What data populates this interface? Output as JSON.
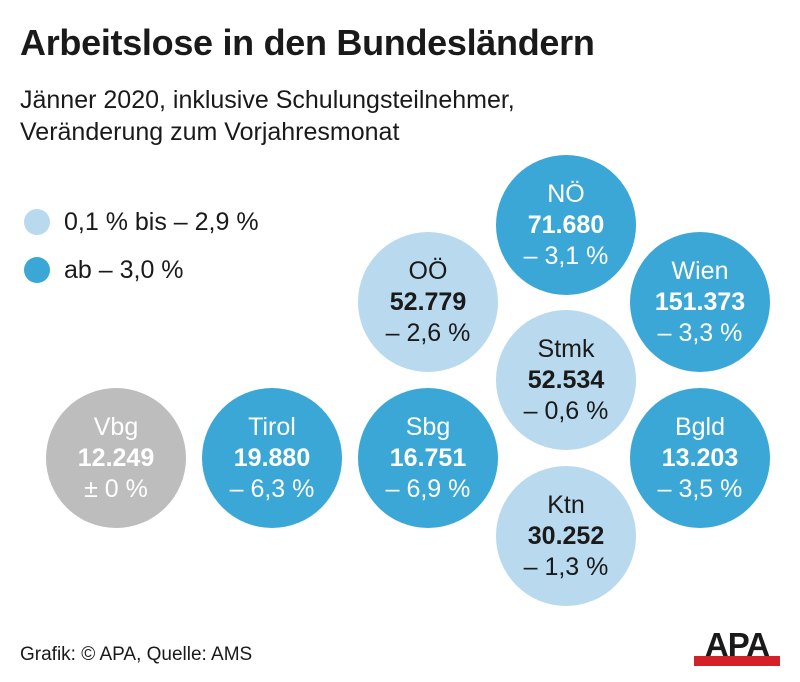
{
  "header": {
    "title": "Arbeitslose in den Bundesländern",
    "subtitle_line1": "Jänner 2020, inklusive Schulungsteilnehmer,",
    "subtitle_line2": "Veränderung zum Vorjahresmonat"
  },
  "legend": [
    {
      "label": "0,1 % bis – 2,9 %",
      "color": "#b8d9ee"
    },
    {
      "label": "ab – 3,0 %",
      "color": "#3aa7d6"
    }
  ],
  "colors": {
    "light": "#b8d9ee",
    "dark": "#3aa7d6",
    "neutral": "#bdbdbd"
  },
  "chart_data": {
    "type": "bubble",
    "title": "Arbeitslose in den Bundesländern",
    "subtitle": "Jänner 2020, inklusive Schulungsteilnehmer, Veränderung zum Vorjahresmonat",
    "points": [
      {
        "name": "NÖ",
        "value": "71.680",
        "change": "– 3,1 %",
        "value_num": 71680,
        "change_num": -3.1,
        "category": "dark"
      },
      {
        "name": "OÖ",
        "value": "52.779",
        "change": "– 2,6 %",
        "value_num": 52779,
        "change_num": -2.6,
        "category": "light"
      },
      {
        "name": "Wien",
        "value": "151.373",
        "change": "– 3,3 %",
        "value_num": 151373,
        "change_num": -3.3,
        "category": "dark"
      },
      {
        "name": "Stmk",
        "value": "52.534",
        "change": "– 0,6 %",
        "value_num": 52534,
        "change_num": -0.6,
        "category": "light"
      },
      {
        "name": "Vbg",
        "value": "12.249",
        "change": "± 0 %",
        "value_num": 12249,
        "change_num": 0,
        "category": "neutral"
      },
      {
        "name": "Tirol",
        "value": "19.880",
        "change": "– 6,3 %",
        "value_num": 19880,
        "change_num": -6.3,
        "category": "dark"
      },
      {
        "name": "Sbg",
        "value": "16.751",
        "change": "– 6,9 %",
        "value_num": 16751,
        "change_num": -6.9,
        "category": "dark"
      },
      {
        "name": "Bgld",
        "value": "13.203",
        "change": "– 3,5 %",
        "value_num": 13203,
        "change_num": -3.5,
        "category": "dark"
      },
      {
        "name": "Ktn",
        "value": "30.252",
        "change": "– 1,3 %",
        "value_num": 30252,
        "change_num": -1.3,
        "category": "light"
      }
    ]
  },
  "footer": {
    "source": "Grafik: © APA, Quelle: AMS"
  },
  "logo": {
    "text": "APA",
    "color": "#1a1a1a",
    "accent": "#d42027"
  }
}
